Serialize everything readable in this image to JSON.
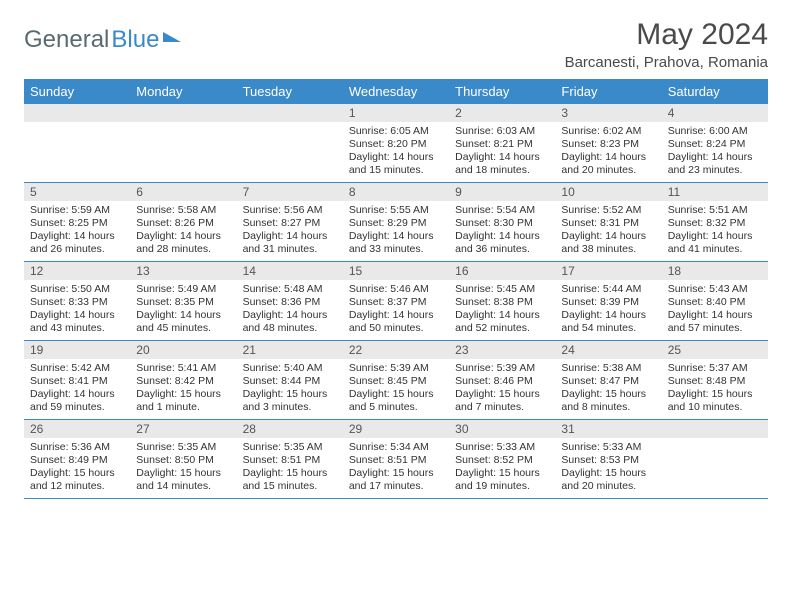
{
  "brand": {
    "part1": "General",
    "part2": "Blue"
  },
  "title": "May 2024",
  "location": "Barcanesti, Prahova, Romania",
  "colors": {
    "header_bg": "#3a8ac9",
    "daynum_bg": "#e9e9e9",
    "rule": "#3a8ac9",
    "text": "#333333",
    "title_text": "#4a4a4a",
    "logo_gray": "#5a6a72"
  },
  "days_of_week": [
    "Sunday",
    "Monday",
    "Tuesday",
    "Wednesday",
    "Thursday",
    "Friday",
    "Saturday"
  ],
  "weeks": [
    [
      {
        "n": "",
        "empty": true
      },
      {
        "n": "",
        "empty": true
      },
      {
        "n": "",
        "empty": true
      },
      {
        "n": "1",
        "sr": "Sunrise: 6:05 AM",
        "ss": "Sunset: 8:20 PM",
        "dl1": "Daylight: 14 hours",
        "dl2": "and 15 minutes."
      },
      {
        "n": "2",
        "sr": "Sunrise: 6:03 AM",
        "ss": "Sunset: 8:21 PM",
        "dl1": "Daylight: 14 hours",
        "dl2": "and 18 minutes."
      },
      {
        "n": "3",
        "sr": "Sunrise: 6:02 AM",
        "ss": "Sunset: 8:23 PM",
        "dl1": "Daylight: 14 hours",
        "dl2": "and 20 minutes."
      },
      {
        "n": "4",
        "sr": "Sunrise: 6:00 AM",
        "ss": "Sunset: 8:24 PM",
        "dl1": "Daylight: 14 hours",
        "dl2": "and 23 minutes."
      }
    ],
    [
      {
        "n": "5",
        "sr": "Sunrise: 5:59 AM",
        "ss": "Sunset: 8:25 PM",
        "dl1": "Daylight: 14 hours",
        "dl2": "and 26 minutes."
      },
      {
        "n": "6",
        "sr": "Sunrise: 5:58 AM",
        "ss": "Sunset: 8:26 PM",
        "dl1": "Daylight: 14 hours",
        "dl2": "and 28 minutes."
      },
      {
        "n": "7",
        "sr": "Sunrise: 5:56 AM",
        "ss": "Sunset: 8:27 PM",
        "dl1": "Daylight: 14 hours",
        "dl2": "and 31 minutes."
      },
      {
        "n": "8",
        "sr": "Sunrise: 5:55 AM",
        "ss": "Sunset: 8:29 PM",
        "dl1": "Daylight: 14 hours",
        "dl2": "and 33 minutes."
      },
      {
        "n": "9",
        "sr": "Sunrise: 5:54 AM",
        "ss": "Sunset: 8:30 PM",
        "dl1": "Daylight: 14 hours",
        "dl2": "and 36 minutes."
      },
      {
        "n": "10",
        "sr": "Sunrise: 5:52 AM",
        "ss": "Sunset: 8:31 PM",
        "dl1": "Daylight: 14 hours",
        "dl2": "and 38 minutes."
      },
      {
        "n": "11",
        "sr": "Sunrise: 5:51 AM",
        "ss": "Sunset: 8:32 PM",
        "dl1": "Daylight: 14 hours",
        "dl2": "and 41 minutes."
      }
    ],
    [
      {
        "n": "12",
        "sr": "Sunrise: 5:50 AM",
        "ss": "Sunset: 8:33 PM",
        "dl1": "Daylight: 14 hours",
        "dl2": "and 43 minutes."
      },
      {
        "n": "13",
        "sr": "Sunrise: 5:49 AM",
        "ss": "Sunset: 8:35 PM",
        "dl1": "Daylight: 14 hours",
        "dl2": "and 45 minutes."
      },
      {
        "n": "14",
        "sr": "Sunrise: 5:48 AM",
        "ss": "Sunset: 8:36 PM",
        "dl1": "Daylight: 14 hours",
        "dl2": "and 48 minutes."
      },
      {
        "n": "15",
        "sr": "Sunrise: 5:46 AM",
        "ss": "Sunset: 8:37 PM",
        "dl1": "Daylight: 14 hours",
        "dl2": "and 50 minutes."
      },
      {
        "n": "16",
        "sr": "Sunrise: 5:45 AM",
        "ss": "Sunset: 8:38 PM",
        "dl1": "Daylight: 14 hours",
        "dl2": "and 52 minutes."
      },
      {
        "n": "17",
        "sr": "Sunrise: 5:44 AM",
        "ss": "Sunset: 8:39 PM",
        "dl1": "Daylight: 14 hours",
        "dl2": "and 54 minutes."
      },
      {
        "n": "18",
        "sr": "Sunrise: 5:43 AM",
        "ss": "Sunset: 8:40 PM",
        "dl1": "Daylight: 14 hours",
        "dl2": "and 57 minutes."
      }
    ],
    [
      {
        "n": "19",
        "sr": "Sunrise: 5:42 AM",
        "ss": "Sunset: 8:41 PM",
        "dl1": "Daylight: 14 hours",
        "dl2": "and 59 minutes."
      },
      {
        "n": "20",
        "sr": "Sunrise: 5:41 AM",
        "ss": "Sunset: 8:42 PM",
        "dl1": "Daylight: 15 hours",
        "dl2": "and 1 minute."
      },
      {
        "n": "21",
        "sr": "Sunrise: 5:40 AM",
        "ss": "Sunset: 8:44 PM",
        "dl1": "Daylight: 15 hours",
        "dl2": "and 3 minutes."
      },
      {
        "n": "22",
        "sr": "Sunrise: 5:39 AM",
        "ss": "Sunset: 8:45 PM",
        "dl1": "Daylight: 15 hours",
        "dl2": "and 5 minutes."
      },
      {
        "n": "23",
        "sr": "Sunrise: 5:39 AM",
        "ss": "Sunset: 8:46 PM",
        "dl1": "Daylight: 15 hours",
        "dl2": "and 7 minutes."
      },
      {
        "n": "24",
        "sr": "Sunrise: 5:38 AM",
        "ss": "Sunset: 8:47 PM",
        "dl1": "Daylight: 15 hours",
        "dl2": "and 8 minutes."
      },
      {
        "n": "25",
        "sr": "Sunrise: 5:37 AM",
        "ss": "Sunset: 8:48 PM",
        "dl1": "Daylight: 15 hours",
        "dl2": "and 10 minutes."
      }
    ],
    [
      {
        "n": "26",
        "sr": "Sunrise: 5:36 AM",
        "ss": "Sunset: 8:49 PM",
        "dl1": "Daylight: 15 hours",
        "dl2": "and 12 minutes."
      },
      {
        "n": "27",
        "sr": "Sunrise: 5:35 AM",
        "ss": "Sunset: 8:50 PM",
        "dl1": "Daylight: 15 hours",
        "dl2": "and 14 minutes."
      },
      {
        "n": "28",
        "sr": "Sunrise: 5:35 AM",
        "ss": "Sunset: 8:51 PM",
        "dl1": "Daylight: 15 hours",
        "dl2": "and 15 minutes."
      },
      {
        "n": "29",
        "sr": "Sunrise: 5:34 AM",
        "ss": "Sunset: 8:51 PM",
        "dl1": "Daylight: 15 hours",
        "dl2": "and 17 minutes."
      },
      {
        "n": "30",
        "sr": "Sunrise: 5:33 AM",
        "ss": "Sunset: 8:52 PM",
        "dl1": "Daylight: 15 hours",
        "dl2": "and 19 minutes."
      },
      {
        "n": "31",
        "sr": "Sunrise: 5:33 AM",
        "ss": "Sunset: 8:53 PM",
        "dl1": "Daylight: 15 hours",
        "dl2": "and 20 minutes."
      },
      {
        "n": "",
        "empty": true
      }
    ]
  ]
}
